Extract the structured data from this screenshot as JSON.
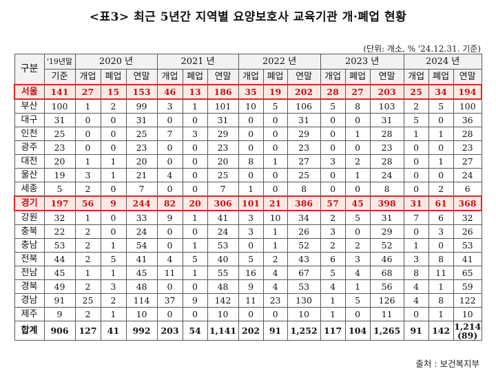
{
  "title": "<표3> 최근 5년간 지역별 요양보호사 교육기관 개·폐업 현황",
  "unit_note": "(단위: 개소, % '24.12.31. 기준)",
  "source": "출처 : 보건복지부",
  "colors": {
    "highlight_text": "#c0141b",
    "highlight_bg": "#fde9e1",
    "highlight_border": "#d42a2a",
    "header_bg": "#f2f2f2"
  },
  "header": {
    "region": "구분",
    "base_top": "'19년말",
    "base_bottom": "기준",
    "years": [
      "2020 년",
      "2021 년",
      "2022 년",
      "2023 년",
      "2024 년"
    ],
    "sub": [
      "개업",
      "폐업",
      "연말"
    ]
  },
  "rows": [
    {
      "region": "서울",
      "highlight": true,
      "values": [
        "141",
        "27",
        "15",
        "153",
        "46",
        "13",
        "186",
        "35",
        "19",
        "202",
        "28",
        "27",
        "203",
        "25",
        "34",
        "194"
      ]
    },
    {
      "region": "부산",
      "highlight": false,
      "values": [
        "100",
        "1",
        "2",
        "99",
        "3",
        "1",
        "101",
        "10",
        "5",
        "106",
        "5",
        "8",
        "103",
        "2",
        "5",
        "100"
      ]
    },
    {
      "region": "대구",
      "highlight": false,
      "values": [
        "31",
        "0",
        "0",
        "31",
        "0",
        "0",
        "31",
        "0",
        "0",
        "31",
        "0",
        "0",
        "31",
        "5",
        "0",
        "36"
      ]
    },
    {
      "region": "인천",
      "highlight": false,
      "values": [
        "25",
        "0",
        "0",
        "25",
        "7",
        "3",
        "29",
        "0",
        "0",
        "29",
        "0",
        "1",
        "28",
        "1",
        "1",
        "28"
      ]
    },
    {
      "region": "광주",
      "highlight": false,
      "values": [
        "23",
        "0",
        "0",
        "23",
        "0",
        "0",
        "23",
        "0",
        "0",
        "23",
        "0",
        "0",
        "23",
        "0",
        "0",
        "23"
      ]
    },
    {
      "region": "대전",
      "highlight": false,
      "values": [
        "20",
        "1",
        "1",
        "20",
        "0",
        "0",
        "20",
        "8",
        "1",
        "27",
        "3",
        "2",
        "28",
        "0",
        "1",
        "27"
      ]
    },
    {
      "region": "울산",
      "highlight": false,
      "values": [
        "19",
        "3",
        "1",
        "21",
        "4",
        "0",
        "25",
        "0",
        "0",
        "25",
        "0",
        "1",
        "24",
        "0",
        "0",
        "24"
      ]
    },
    {
      "region": "세종",
      "highlight": false,
      "values": [
        "5",
        "2",
        "0",
        "7",
        "0",
        "0",
        "7",
        "1",
        "0",
        "8",
        "0",
        "0",
        "8",
        "0",
        "2",
        "6"
      ]
    },
    {
      "region": "경기",
      "highlight": true,
      "values": [
        "197",
        "56",
        "9",
        "244",
        "82",
        "20",
        "306",
        "101",
        "21",
        "386",
        "57",
        "45",
        "398",
        "31",
        "61",
        "368"
      ]
    },
    {
      "region": "강원",
      "highlight": false,
      "values": [
        "32",
        "1",
        "0",
        "33",
        "9",
        "1",
        "41",
        "3",
        "10",
        "34",
        "2",
        "5",
        "31",
        "7",
        "6",
        "32"
      ]
    },
    {
      "region": "충북",
      "highlight": false,
      "values": [
        "22",
        "2",
        "0",
        "24",
        "0",
        "0",
        "24",
        "3",
        "1",
        "26",
        "3",
        "0",
        "29",
        "0",
        "3",
        "26"
      ]
    },
    {
      "region": "충남",
      "highlight": false,
      "values": [
        "53",
        "2",
        "1",
        "54",
        "0",
        "1",
        "53",
        "0",
        "1",
        "52",
        "2",
        "2",
        "52",
        "1",
        "0",
        "53"
      ]
    },
    {
      "region": "전북",
      "highlight": false,
      "values": [
        "44",
        "2",
        "5",
        "41",
        "4",
        "5",
        "40",
        "5",
        "2",
        "43",
        "6",
        "3",
        "46",
        "3",
        "8",
        "41"
      ]
    },
    {
      "region": "전남",
      "highlight": false,
      "values": [
        "45",
        "1",
        "1",
        "45",
        "11",
        "1",
        "55",
        "16",
        "4",
        "67",
        "5",
        "4",
        "68",
        "8",
        "11",
        "65"
      ]
    },
    {
      "region": "경북",
      "highlight": false,
      "values": [
        "49",
        "2",
        "3",
        "48",
        "0",
        "0",
        "48",
        "9",
        "4",
        "53",
        "4",
        "1",
        "56",
        "4",
        "1",
        "59"
      ]
    },
    {
      "region": "경남",
      "highlight": false,
      "values": [
        "91",
        "25",
        "2",
        "114",
        "37",
        "9",
        "142",
        "11",
        "23",
        "130",
        "1",
        "5",
        "126",
        "4",
        "8",
        "122"
      ]
    },
    {
      "region": "제주",
      "highlight": false,
      "values": [
        "9",
        "2",
        "1",
        "10",
        "0",
        "0",
        "10",
        "0",
        "0",
        "10",
        "1",
        "0",
        "11",
        "0",
        "1",
        "10"
      ]
    }
  ],
  "total": {
    "region": "합계",
    "values": [
      "906",
      "127",
      "41",
      "992",
      "203",
      "54",
      "1,141",
      "202",
      "91",
      "1,252",
      "117",
      "104",
      "1,265",
      "91",
      "142"
    ],
    "last_main": "1,214",
    "last_sub": "(89)"
  },
  "chart_data": {
    "type": "table",
    "title": "<표3> 최근 5년간 지역별 요양보호사 교육기관 개·폐업 현황",
    "unit": "개소 ('24.12.31. 기준)",
    "columns": [
      "구분",
      "'19년말 기준",
      "2020 개업",
      "2020 폐업",
      "2020 연말",
      "2021 개업",
      "2021 폐업",
      "2021 연말",
      "2022 개업",
      "2022 폐업",
      "2022 연말",
      "2023 개업",
      "2023 폐업",
      "2023 연말",
      "2024 개업",
      "2024 폐업",
      "2024 연말"
    ],
    "highlighted_rows": [
      "서울",
      "경기"
    ],
    "total_row": [
      "합계",
      "906",
      "127",
      "41",
      "992",
      "203",
      "54",
      "1,141",
      "202",
      "91",
      "1,252",
      "117",
      "104",
      "1,265",
      "91",
      "142",
      "1,214 (89)"
    ]
  }
}
